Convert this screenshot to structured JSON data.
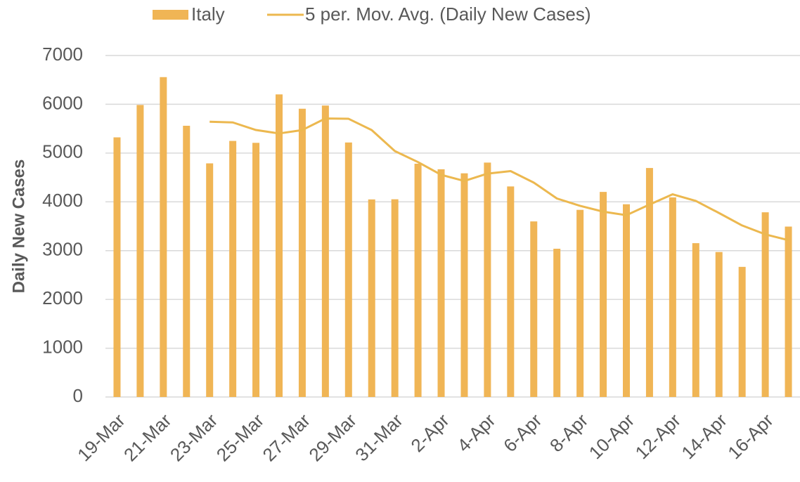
{
  "chart_data": {
    "type": "bar",
    "y_axis_label": "Daily New Cases",
    "categories": [
      "19-Mar",
      null,
      "21-Mar",
      null,
      "23-Mar",
      null,
      "25-Mar",
      null,
      "27-Mar",
      null,
      "29-Mar",
      null,
      "31-Mar",
      null,
      "2-Apr",
      null,
      "4-Apr",
      null,
      "6-Apr",
      null,
      "8-Apr",
      null,
      "10-Apr",
      null,
      "12-Apr",
      null,
      "14-Apr",
      null,
      "16-Apr",
      null
    ],
    "series": [
      {
        "name": "Italy",
        "type": "bar",
        "color": "#f0b555",
        "values": [
          5322,
          5986,
          6557,
          5560,
          4789,
          5249,
          5210,
          6203,
          5909,
          5974,
          5217,
          4050,
          4053,
          4782,
          4668,
          4585,
          4805,
          4316,
          3599,
          3039,
          3836,
          4204,
          3951,
          4694,
          4092,
          3153,
          2972,
          2667,
          3786,
          3493
        ]
      },
      {
        "name": "5 per. Mov. Avg. (Daily New Cases)",
        "type": "line",
        "color": "#ecb84f",
        "values": [
          null,
          null,
          null,
          null,
          5643,
          5628,
          5473,
          5402,
          5472,
          5709,
          5703,
          5471,
          5041,
          4815,
          4554,
          4428,
          4579,
          4631,
          4395,
          4069,
          3919,
          3799,
          3726,
          3945,
          4155,
          4019,
          3772,
          3516,
          3334,
          3214
        ]
      }
    ],
    "ylim": [
      0,
      7000
    ],
    "yticks": [
      0,
      1000,
      2000,
      3000,
      4000,
      5000,
      6000,
      7000
    ],
    "grid": true
  }
}
